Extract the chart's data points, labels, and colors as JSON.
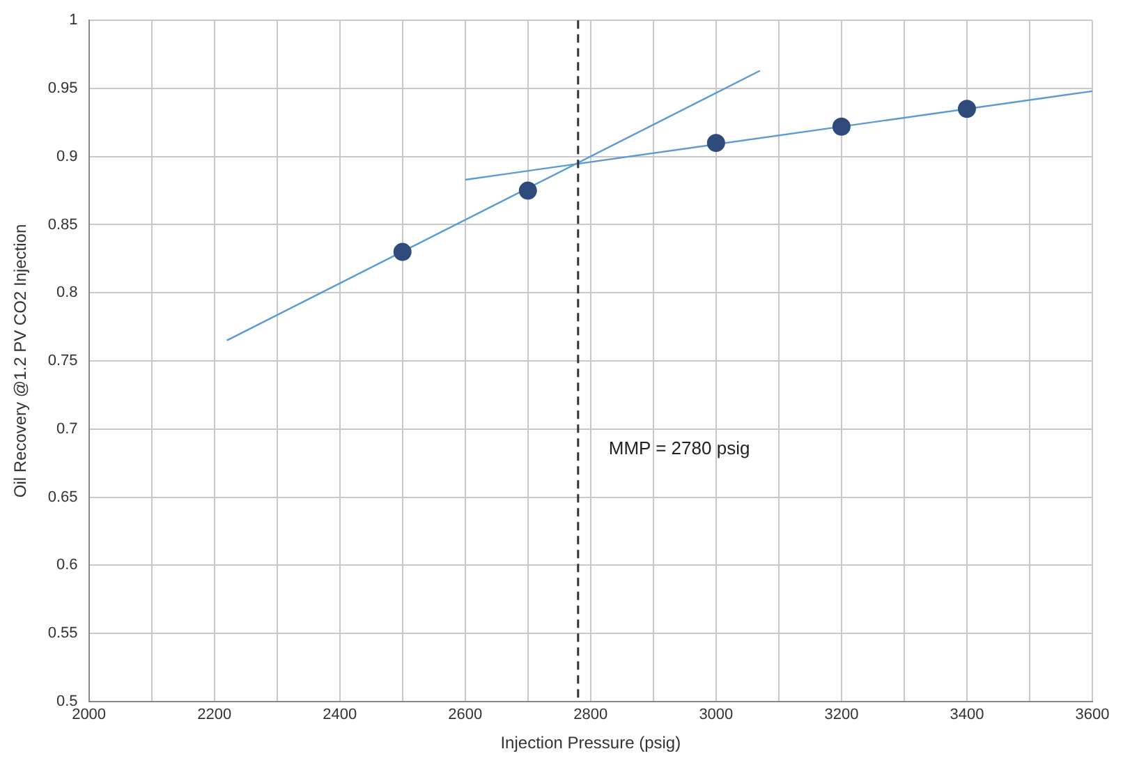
{
  "chart_data": {
    "type": "scatter",
    "xlabel": "Injection Pressure (psig)",
    "ylabel": "Oil Recovery @1.2 PV CO2 Injection",
    "xlim": [
      2000,
      3600
    ],
    "xticks": [
      2000,
      {
        "value": 2100,
        "label": null
      },
      2200,
      {
        "value": 2300,
        "label": null
      },
      2400,
      {
        "value": 2500,
        "label": null
      },
      2600,
      {
        "value": 2700,
        "label": null
      },
      2800,
      {
        "value": 2900,
        "label": null
      },
      3000,
      {
        "value": 3100,
        "label": null
      },
      3200,
      {
        "value": 3300,
        "label": null
      },
      3400,
      {
        "value": 3500,
        "label": null
      },
      3600
    ],
    "ylim": [
      0.5,
      1
    ],
    "yticks": [
      0.5,
      0.55,
      0.6,
      0.65,
      0.7,
      0.75,
      0.8,
      0.85,
      0.9,
      0.95,
      1
    ],
    "grid": true,
    "legend": false,
    "marker": "circle",
    "series": [
      {
        "color": "#2f4b7c",
        "x": [
          2500,
          2700,
          3000,
          3200,
          3400
        ],
        "values": [
          0.83,
          0.875,
          0.91,
          0.922,
          0.935
        ]
      },
      {
        "type": "line",
        "color": "#5b9bd5",
        "marker": "none",
        "x": [
          2220,
          3070
        ],
        "values": [
          0.765,
          0.963
        ]
      },
      {
        "type": "line",
        "color": "#5b9bd5",
        "marker": "none",
        "x": [
          2600,
          3600
        ],
        "values": [
          0.883,
          0.948
        ]
      }
    ],
    "ref_lines": [
      {
        "axis": "x",
        "value": 2780,
        "color": "#333333",
        "line_style": "dashed"
      }
    ],
    "annotations": [
      {
        "text": "MMP = 2780 psig",
        "x": 2780,
        "y": 0.685
      }
    ]
  }
}
